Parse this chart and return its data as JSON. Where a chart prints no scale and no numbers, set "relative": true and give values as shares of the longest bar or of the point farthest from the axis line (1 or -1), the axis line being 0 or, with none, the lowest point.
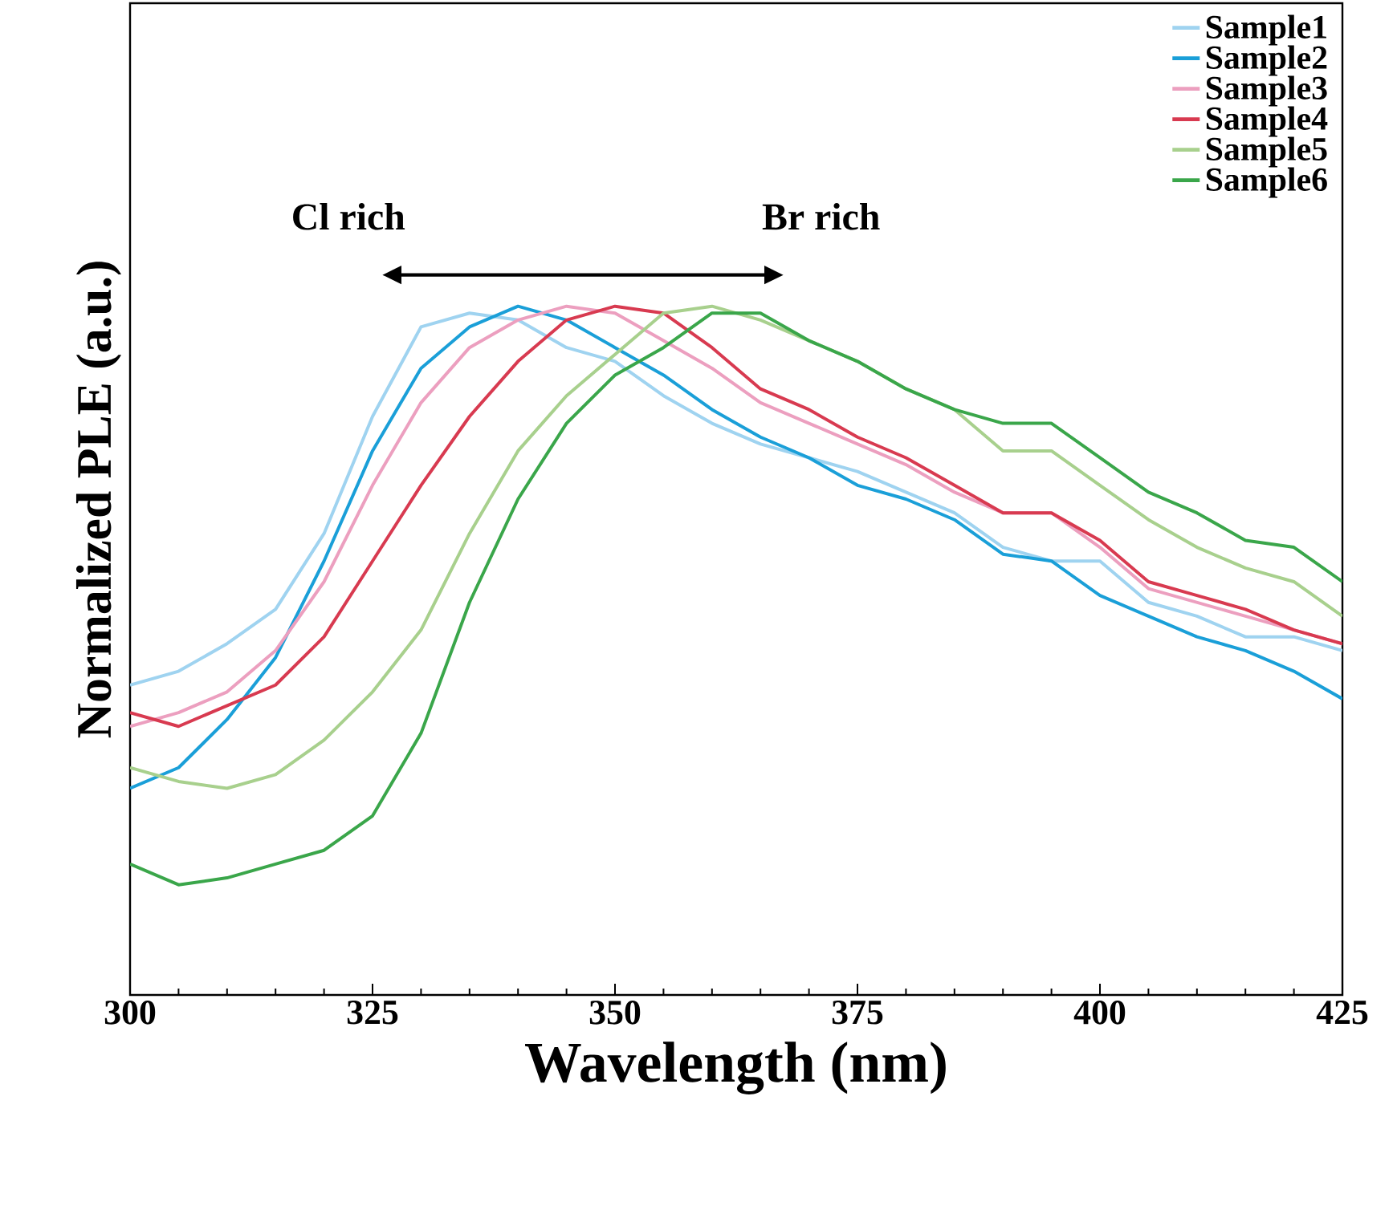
{
  "chart_data": {
    "type": "line",
    "xlabel": "Wavelength (nm)",
    "ylabel": "Normalized PLE (a.u.)",
    "relative": true,
    "xlim": [
      300,
      425
    ],
    "xticks": [
      300,
      325,
      350,
      375,
      400,
      425
    ],
    "tick_labels": "x",
    "legend": "top right",
    "grid": false,
    "marker": "none",
    "line_style": "solid",
    "annotations": [
      "Cl rich",
      "Br rich"
    ],
    "x": [
      300,
      305,
      310,
      315,
      320,
      325,
      330,
      335,
      340,
      345,
      350,
      355,
      360,
      365,
      370,
      375,
      380,
      385,
      390,
      395,
      400,
      405,
      410,
      415,
      420,
      425
    ],
    "series": [
      {
        "name": "Sample1",
        "color": "#9fd3f0",
        "values": [
          0.45,
          0.47,
          0.51,
          0.56,
          0.67,
          0.84,
          0.97,
          0.99,
          0.98,
          0.94,
          0.92,
          0.87,
          0.83,
          0.8,
          0.78,
          0.76,
          0.73,
          0.7,
          0.65,
          0.63,
          0.63,
          0.57,
          0.55,
          0.52,
          0.52,
          0.5
        ]
      },
      {
        "name": "Sample2",
        "color": "#1a9fd8",
        "values": [
          0.3,
          0.33,
          0.4,
          0.49,
          0.63,
          0.79,
          0.91,
          0.97,
          1.0,
          0.98,
          0.94,
          0.9,
          0.85,
          0.81,
          0.78,
          0.74,
          0.72,
          0.69,
          0.64,
          0.63,
          0.58,
          0.55,
          0.52,
          0.5,
          0.47,
          0.43
        ]
      },
      {
        "name": "Sample3",
        "color": "#ec9fbf",
        "values": [
          0.39,
          0.41,
          0.44,
          0.5,
          0.6,
          0.74,
          0.86,
          0.94,
          0.98,
          1.0,
          0.99,
          0.95,
          0.91,
          0.86,
          0.83,
          0.8,
          0.77,
          0.73,
          0.7,
          0.7,
          0.65,
          0.59,
          0.57,
          0.55,
          0.53,
          0.51
        ]
      },
      {
        "name": "Sample4",
        "color": "#d83a50",
        "values": [
          0.41,
          0.39,
          0.42,
          0.45,
          0.52,
          0.63,
          0.74,
          0.84,
          0.92,
          0.98,
          1.0,
          0.99,
          0.94,
          0.88,
          0.85,
          0.81,
          0.78,
          0.74,
          0.7,
          0.7,
          0.66,
          0.6,
          0.58,
          0.56,
          0.53,
          0.51
        ]
      },
      {
        "name": "Sample5",
        "color": "#a8d08d",
        "values": [
          0.33,
          0.31,
          0.3,
          0.32,
          0.37,
          0.44,
          0.53,
          0.67,
          0.79,
          0.87,
          0.93,
          0.99,
          1.0,
          0.98,
          0.95,
          0.92,
          0.88,
          0.85,
          0.79,
          0.79,
          0.74,
          0.69,
          0.65,
          0.62,
          0.6,
          0.55
        ]
      },
      {
        "name": "Sample6",
        "color": "#3aa64a",
        "values": [
          0.19,
          0.16,
          0.17,
          0.19,
          0.21,
          0.26,
          0.38,
          0.57,
          0.72,
          0.83,
          0.9,
          0.94,
          0.99,
          0.99,
          0.95,
          0.92,
          0.88,
          0.85,
          0.83,
          0.83,
          0.78,
          0.73,
          0.7,
          0.66,
          0.65,
          0.6
        ]
      }
    ]
  }
}
